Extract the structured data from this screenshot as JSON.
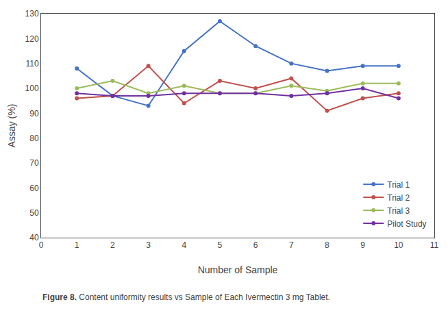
{
  "chart_data": {
    "type": "line",
    "x": [
      1,
      2,
      3,
      4,
      5,
      6,
      7,
      8,
      9,
      10
    ],
    "series": [
      {
        "name": "Trial 1",
        "color": "#4472C4",
        "values": [
          108,
          97,
          93,
          115,
          127,
          117,
          110,
          107,
          109,
          109
        ]
      },
      {
        "name": "Trial 2",
        "color": "#C0504D",
        "values": [
          96,
          97,
          109,
          94,
          103,
          100,
          104,
          91,
          96,
          98
        ]
      },
      {
        "name": "Trial 3",
        "color": "#9BBB59",
        "values": [
          100,
          103,
          98,
          101,
          98,
          98,
          101,
          99,
          102,
          102
        ]
      },
      {
        "name": "Pilot Study",
        "color": "#7030A0",
        "values": [
          98,
          97,
          97,
          98,
          98,
          98,
          97,
          98,
          100,
          96
        ]
      }
    ],
    "xlabel": "Number of Sample",
    "ylabel": "Assay (%)",
    "xlim": [
      0,
      11
    ],
    "ylim": [
      40,
      130
    ],
    "xticks": [
      0,
      1,
      2,
      3,
      4,
      5,
      6,
      7,
      8,
      9,
      10,
      11
    ],
    "yticks": [
      40,
      50,
      60,
      70,
      80,
      90,
      100,
      110,
      120,
      130
    ],
    "annotations": [
      "Figure 8.",
      " Content uniformity results vs Sample of Each Ivermectin 3 mg Tablet."
    ],
    "marker": "circle",
    "line_style": "solid",
    "legend": "lower right",
    "grid": false
  }
}
